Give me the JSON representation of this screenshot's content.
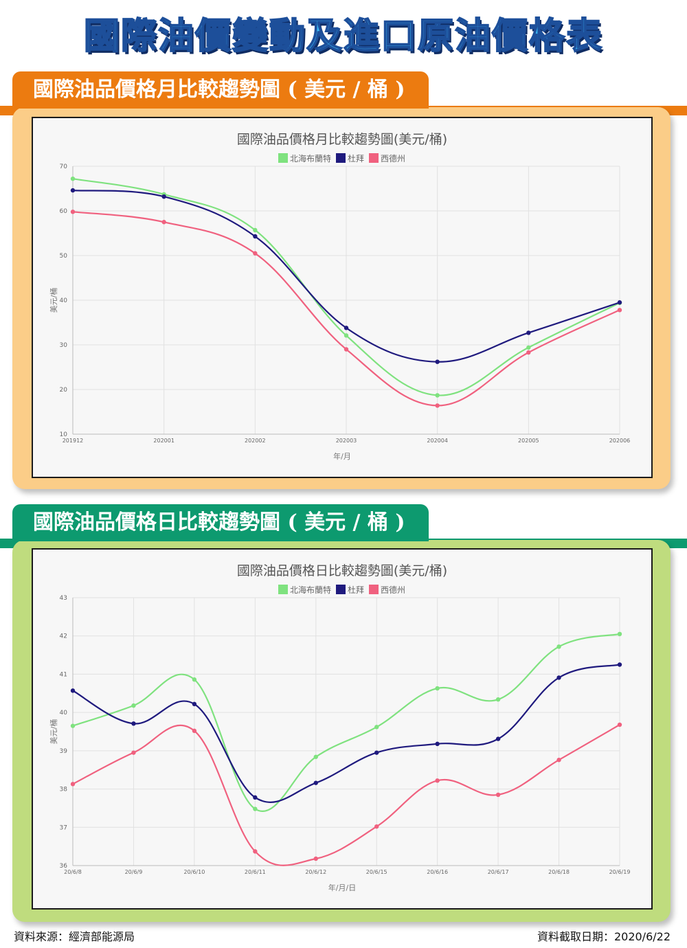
{
  "page": {
    "main_title": "國際油價變動及進口原油價格表",
    "section_monthly": "國際油品價格月比較趨勢圖 ( 美元 / 桶 )",
    "section_daily": "國際油品價格日比較趨勢圖 ( 美元 / 桶 )",
    "source": "資料來源：經濟部能源局",
    "date_note": "資料截取日期：2020/6/22"
  },
  "colors": {
    "brent": "#7fe27f",
    "dubai": "#1f1a7e",
    "wti": "#f0617f",
    "orange": "#ec7b10",
    "green": "#0d9a6f"
  },
  "chart_data": [
    {
      "type": "line",
      "title": "國際油品價格月比較趨勢圖(美元/桶)",
      "xlabel": "年/月",
      "ylabel": "美元/桶",
      "ylim": [
        10,
        70
      ],
      "yticks": [
        10,
        20,
        30,
        40,
        50,
        60,
        70
      ],
      "grid": true,
      "legend": "top-center",
      "categories": [
        "201912",
        "202001",
        "202002",
        "202003",
        "202004",
        "202005",
        "202006"
      ],
      "series": [
        {
          "name": "北海布蘭特",
          "color": "#7fe27f",
          "values": [
            67.2,
            63.7,
            55.7,
            32.1,
            18.7,
            29.4,
            39.4
          ]
        },
        {
          "name": "杜拜",
          "color": "#1f1a7e",
          "values": [
            64.6,
            63.2,
            54.3,
            33.8,
            26.2,
            32.7,
            39.5
          ]
        },
        {
          "name": "西德州",
          "color": "#f0617f",
          "values": [
            59.8,
            57.5,
            50.5,
            29.0,
            16.4,
            28.3,
            37.8
          ]
        }
      ]
    },
    {
      "type": "line",
      "title": "國際油品價格日比較趨勢圖(美元/桶)",
      "xlabel": "年/月/日",
      "ylabel": "美元/桶",
      "ylim": [
        36,
        43
      ],
      "yticks": [
        36,
        37,
        38,
        39,
        40,
        41,
        42,
        43
      ],
      "grid": true,
      "legend": "top-center",
      "categories": [
        "20/6/8",
        "20/6/9",
        "20/6/10",
        "20/6/11",
        "20/6/12",
        "20/6/15",
        "20/6/16",
        "20/6/17",
        "20/6/18",
        "20/6/19"
      ],
      "series": [
        {
          "name": "北海布蘭特",
          "color": "#7fe27f",
          "values": [
            39.65,
            40.18,
            40.86,
            37.48,
            38.84,
            39.62,
            40.63,
            40.34,
            41.72,
            42.05
          ]
        },
        {
          "name": "杜拜",
          "color": "#1f1a7e",
          "values": [
            40.57,
            39.71,
            40.22,
            37.78,
            38.16,
            38.95,
            39.18,
            39.31,
            40.91,
            41.25
          ]
        },
        {
          "name": "西德州",
          "color": "#f0617f",
          "values": [
            38.13,
            38.95,
            39.52,
            36.37,
            36.18,
            37.02,
            38.22,
            37.85,
            38.76,
            39.68
          ]
        }
      ]
    }
  ]
}
